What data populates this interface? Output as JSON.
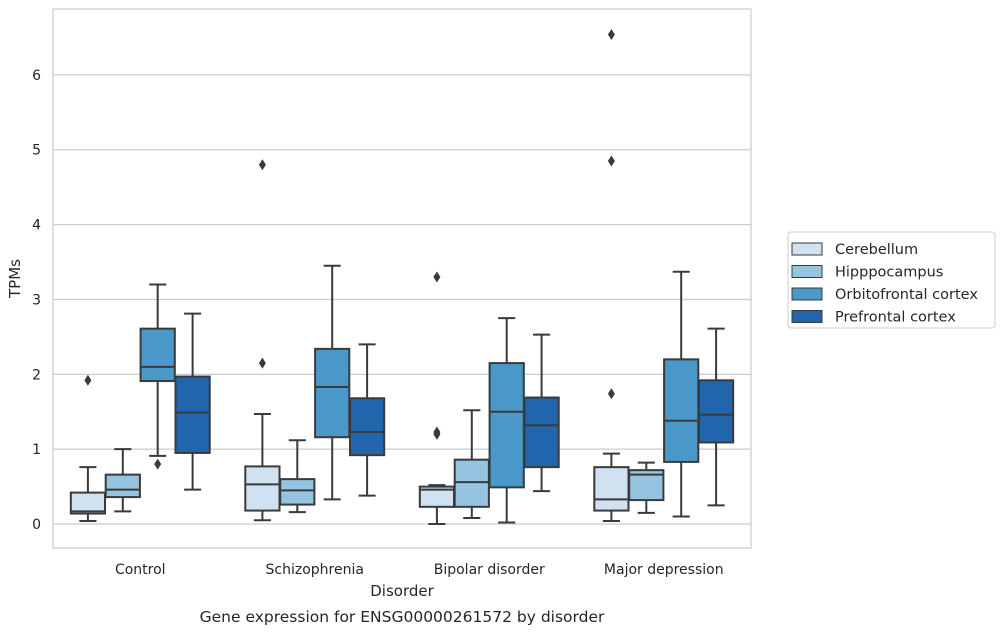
{
  "chart_data": {
    "type": "boxplot",
    "caption": "Gene expression for ENSG00000261572 by disorder",
    "xlabel": "Disorder",
    "ylabel": "TPMs",
    "ylim": [
      -0.32,
      6.88
    ],
    "yticks": [
      0,
      1,
      2,
      3,
      4,
      5,
      6
    ],
    "grid": "horizontal",
    "legend_position": "right, outside plot",
    "categories": [
      "Control",
      "Schizophrenia",
      "Bipolar disorder",
      "Major depression"
    ],
    "series": [
      {
        "name": "Cerebellum",
        "color": "#d0e1f2",
        "boxes": [
          {
            "whislo": 0.04,
            "q1": 0.14,
            "med": 0.17,
            "q3": 0.42,
            "whishi": 0.76,
            "fliers": [
              1.92
            ]
          },
          {
            "whislo": 0.05,
            "q1": 0.18,
            "med": 0.53,
            "q3": 0.77,
            "whishi": 1.47,
            "fliers": [
              2.15,
              4.8
            ]
          },
          {
            "whislo": 0.0,
            "q1": 0.23,
            "med": 0.46,
            "q3": 0.5,
            "whishi": 0.52,
            "fliers": [
              1.2,
              1.23,
              3.3
            ]
          },
          {
            "whislo": 0.04,
            "q1": 0.18,
            "med": 0.33,
            "q3": 0.76,
            "whishi": 0.94,
            "fliers": [
              1.74,
              4.85,
              6.54
            ]
          }
        ]
      },
      {
        "name": "Hipppocampus",
        "color": "#94c4df",
        "boxes": [
          {
            "whislo": 0.17,
            "q1": 0.36,
            "med": 0.46,
            "q3": 0.66,
            "whishi": 1.0,
            "fliers": []
          },
          {
            "whislo": 0.16,
            "q1": 0.26,
            "med": 0.45,
            "q3": 0.6,
            "whishi": 1.12,
            "fliers": []
          },
          {
            "whislo": 0.08,
            "q1": 0.23,
            "med": 0.56,
            "q3": 0.86,
            "whishi": 1.52,
            "fliers": []
          },
          {
            "whislo": 0.15,
            "q1": 0.32,
            "med": 0.66,
            "q3": 0.72,
            "whishi": 0.82,
            "fliers": []
          }
        ]
      },
      {
        "name": "Orbitofrontal cortex",
        "color": "#4a98c9",
        "boxes": [
          {
            "whislo": 0.91,
            "q1": 1.91,
            "med": 2.1,
            "q3": 2.61,
            "whishi": 3.2,
            "fliers": [
              0.8
            ]
          },
          {
            "whislo": 0.33,
            "q1": 1.16,
            "med": 1.83,
            "q3": 2.34,
            "whishi": 3.45,
            "fliers": []
          },
          {
            "whislo": 0.02,
            "q1": 0.49,
            "med": 1.5,
            "q3": 2.15,
            "whishi": 2.75,
            "fliers": []
          },
          {
            "whislo": 0.1,
            "q1": 0.83,
            "med": 1.38,
            "q3": 2.2,
            "whishi": 3.37,
            "fliers": []
          }
        ]
      },
      {
        "name": "Prefrontal cortex",
        "color": "#2166ac",
        "boxes": [
          {
            "whislo": 0.46,
            "q1": 0.95,
            "med": 1.49,
            "q3": 1.97,
            "whishi": 2.81,
            "fliers": []
          },
          {
            "whislo": 0.38,
            "q1": 0.92,
            "med": 1.23,
            "q3": 1.68,
            "whishi": 2.4,
            "fliers": []
          },
          {
            "whislo": 0.44,
            "q1": 0.76,
            "med": 1.32,
            "q3": 1.69,
            "whishi": 2.53,
            "fliers": []
          },
          {
            "whislo": 0.25,
            "q1": 1.09,
            "med": 1.46,
            "q3": 1.92,
            "whishi": 2.61,
            "fliers": []
          }
        ]
      }
    ]
  }
}
